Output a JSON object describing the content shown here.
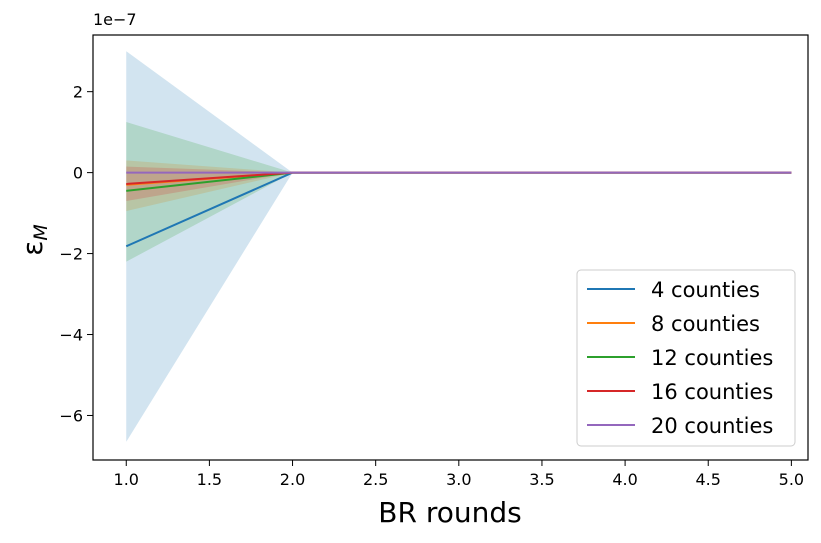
{
  "chart_data": {
    "type": "line",
    "xlabel": "BR rounds",
    "ylabel": "ε",
    "ylabel_subscript": "M",
    "offset_label": "1e−7",
    "xlim": [
      0.8,
      5.1
    ],
    "ylim": [
      -7.1,
      3.4
    ],
    "xticks": [
      1.0,
      1.5,
      2.0,
      2.5,
      3.0,
      3.5,
      4.0,
      4.5,
      5.0
    ],
    "xtick_labels": [
      "1.0",
      "1.5",
      "2.0",
      "2.5",
      "3.0",
      "3.5",
      "4.0",
      "4.5",
      "5.0"
    ],
    "yticks": [
      2,
      0,
      -2,
      -4,
      -6
    ],
    "ytick_labels": [
      "2",
      "0",
      "−2",
      "−4",
      "−6"
    ],
    "x": [
      1,
      2,
      3,
      4,
      5
    ],
    "series": [
      {
        "name": "4 counties",
        "color": "#1f77b4",
        "values": [
          -1.82,
          0,
          0,
          0,
          0
        ],
        "band_upper": [
          3.0,
          0,
          0,
          0,
          0
        ],
        "band_lower": [
          -6.65,
          0,
          0,
          0,
          0
        ]
      },
      {
        "name": "8 counties",
        "color": "#ff7f0e",
        "values": [
          -0.3,
          0,
          0,
          0,
          0
        ],
        "band_upper": [
          0.3,
          0,
          0,
          0,
          0
        ],
        "band_lower": [
          -0.95,
          0,
          0,
          0,
          0
        ]
      },
      {
        "name": "12 counties",
        "color": "#2ca02c",
        "values": [
          -0.45,
          0,
          0,
          0,
          0
        ],
        "band_upper": [
          1.25,
          0,
          0,
          0,
          0
        ],
        "band_lower": [
          -2.2,
          0,
          0,
          0,
          0
        ]
      },
      {
        "name": "16 counties",
        "color": "#d62728",
        "values": [
          -0.28,
          0,
          0,
          0,
          0
        ],
        "band_upper": [
          0.15,
          0,
          0,
          0,
          0
        ],
        "band_lower": [
          -0.7,
          0,
          0,
          0,
          0
        ]
      },
      {
        "name": "20 counties",
        "color": "#9467bd",
        "values": [
          0,
          0,
          0,
          0,
          0
        ],
        "band_upper": [
          0,
          0,
          0,
          0,
          0
        ],
        "band_lower": [
          0,
          0,
          0,
          0,
          0
        ]
      }
    ],
    "band_alpha": 0.2,
    "grid": false,
    "legend_position": "lower-right"
  }
}
